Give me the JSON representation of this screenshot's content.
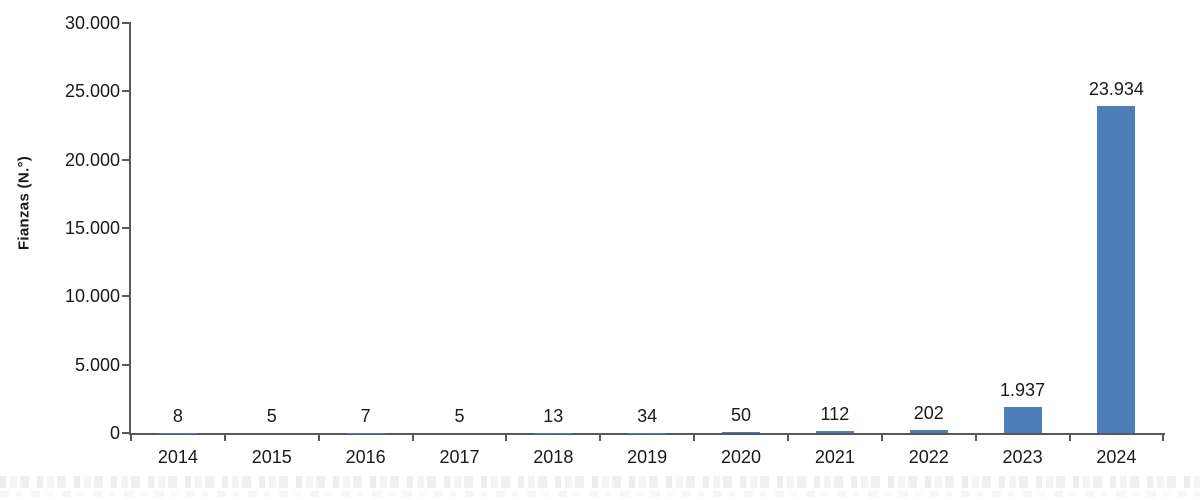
{
  "chart_data": {
    "type": "bar",
    "title": "",
    "xlabel": "",
    "ylabel": "Fianzas (N.°)",
    "categories": [
      "2014",
      "2015",
      "2016",
      "2017",
      "2018",
      "2019",
      "2020",
      "2021",
      "2022",
      "2023",
      "2024"
    ],
    "values": [
      8,
      5,
      7,
      5,
      13,
      34,
      50,
      112,
      202,
      1937,
      23934
    ],
    "value_labels": [
      "8",
      "5",
      "7",
      "5",
      "13",
      "34",
      "50",
      "112",
      "202",
      "1.937",
      "23.934"
    ],
    "ylim": [
      0,
      30000
    ],
    "y_tick_values": [
      0,
      5000,
      10000,
      15000,
      20000,
      25000,
      30000
    ],
    "y_tick_labels": [
      "0",
      "5.000",
      "10.000",
      "15.000",
      "20.000",
      "25.000",
      "30.000"
    ],
    "grid": false,
    "legend": false,
    "data_labels_position": "outside-end",
    "bar_color": "#4e7eba",
    "axis_color": "#595959",
    "text_color": "#1a1a1a"
  }
}
